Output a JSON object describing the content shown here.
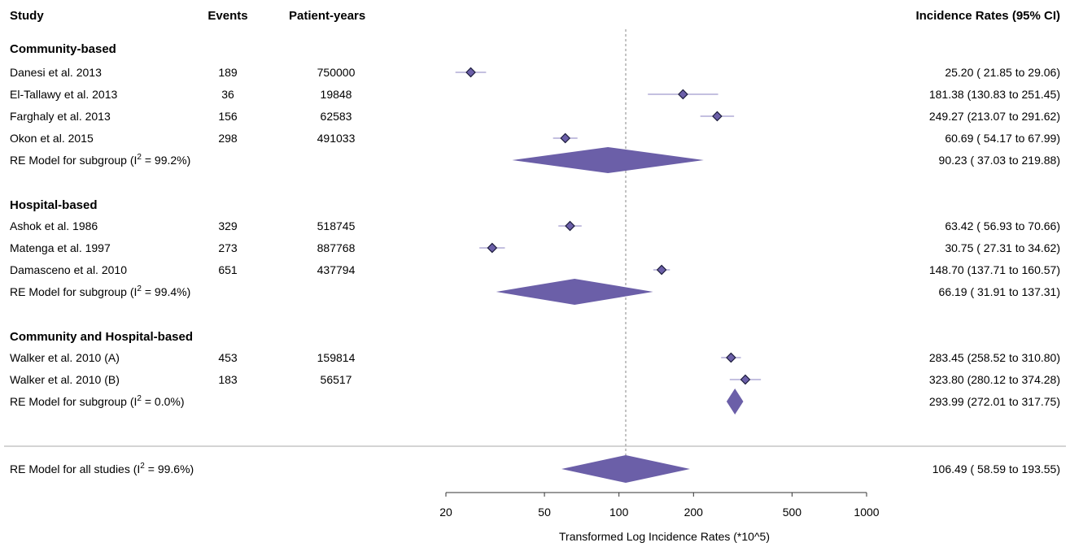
{
  "headers": {
    "study": "Study",
    "events": "Events",
    "patient_years": "Patient-years",
    "incidence": "Incidence Rates (95% CI)"
  },
  "colors": {
    "study_marker": "#6b5fa8",
    "summary_diamond": "#6b5fa8",
    "ci_line": "#8a80c0",
    "marker_border": "#1a1a3a",
    "reference_line": "#888888",
    "separator": "#aaaaaa"
  },
  "chart_data": {
    "type": "forest",
    "x_scale": "log",
    "xlim": [
      20,
      1000
    ],
    "xticks": [
      20,
      50,
      100,
      200,
      500,
      1000
    ],
    "xtick_labels": [
      "20",
      "50",
      "100",
      "200",
      "500",
      "1000"
    ],
    "xlabel": "Transformed Log Incidence Rates (*10^5)",
    "reference_line": 106.49,
    "groups": [
      {
        "name": "Community-based",
        "studies": [
          {
            "study": "Danesi et al. 2013",
            "events": "189",
            "patient_years": "750000",
            "estimate": 25.2,
            "lower": 21.85,
            "upper": 29.06,
            "ci_text": "25.20 ( 21.85 to  29.06)"
          },
          {
            "study": "El-Tallawy et al. 2013",
            "events": "36",
            "patient_years": "19848",
            "estimate": 181.38,
            "lower": 130.83,
            "upper": 251.45,
            "ci_text": "181.38 (130.83 to 251.45)"
          },
          {
            "study": "Farghaly et al. 2013",
            "events": "156",
            "patient_years": "62583",
            "estimate": 249.27,
            "lower": 213.07,
            "upper": 291.62,
            "ci_text": "249.27 (213.07 to 291.62)"
          },
          {
            "study": "Okon et al. 2015",
            "events": "298",
            "patient_years": "491033",
            "estimate": 60.69,
            "lower": 54.17,
            "upper": 67.99,
            "ci_text": "60.69 ( 54.17 to  67.99)"
          }
        ],
        "summary": {
          "label_pre": "RE Model for subgroup (I",
          "label_sup": "2",
          "label_post": " = 99.2%)",
          "estimate": 90.23,
          "lower": 37.03,
          "upper": 219.88,
          "ci_text": "90.23 ( 37.03 to 219.88)"
        }
      },
      {
        "name": "Hospital-based",
        "studies": [
          {
            "study": "Ashok et al. 1986",
            "events": "329",
            "patient_years": "518745",
            "estimate": 63.42,
            "lower": 56.93,
            "upper": 70.66,
            "ci_text": "63.42 ( 56.93 to  70.66)"
          },
          {
            "study": "Matenga et al. 1997",
            "events": "273",
            "patient_years": "887768",
            "estimate": 30.75,
            "lower": 27.31,
            "upper": 34.62,
            "ci_text": "30.75 ( 27.31 to  34.62)"
          },
          {
            "study": "Damasceno et al. 2010",
            "events": "651",
            "patient_years": "437794",
            "estimate": 148.7,
            "lower": 137.71,
            "upper": 160.57,
            "ci_text": "148.70 (137.71 to 160.57)"
          }
        ],
        "summary": {
          "label_pre": "RE Model for subgroup (I",
          "label_sup": "2",
          "label_post": " = 99.4%)",
          "estimate": 66.19,
          "lower": 31.91,
          "upper": 137.31,
          "ci_text": "66.19 ( 31.91 to 137.31)"
        }
      },
      {
        "name": "Community and Hospital-based",
        "studies": [
          {
            "study": "Walker et al. 2010 (A)",
            "events": "453",
            "patient_years": "159814",
            "estimate": 283.45,
            "lower": 258.52,
            "upper": 310.8,
            "ci_text": "283.45 (258.52 to 310.80)"
          },
          {
            "study": "Walker et al. 2010 (B)",
            "events": "183",
            "patient_years": "56517",
            "estimate": 323.8,
            "lower": 280.12,
            "upper": 374.28,
            "ci_text": "323.80 (280.12 to 374.28)"
          }
        ],
        "summary": {
          "label_pre": "RE Model for subgroup (I",
          "label_sup": "2",
          "label_post": " = 0.0%)",
          "estimate": 293.99,
          "lower": 272.01,
          "upper": 317.75,
          "ci_text": "293.99 (272.01 to 317.75)"
        }
      }
    ],
    "overall": {
      "label_pre": "RE Model for all studies (I",
      "label_sup": "2",
      "label_post": " = 99.6%)",
      "estimate": 106.49,
      "lower": 58.59,
      "upper": 193.55,
      "ci_text": "106.49 ( 58.59 to 193.55)"
    }
  }
}
